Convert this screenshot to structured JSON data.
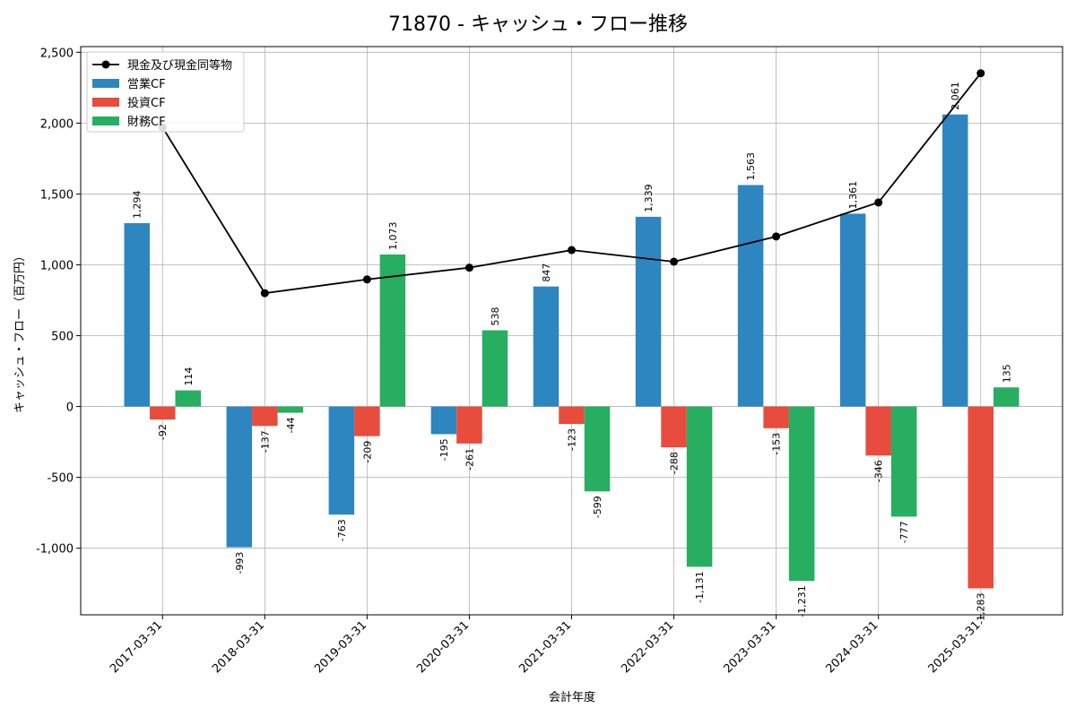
{
  "chart_data": {
    "type": "bar",
    "title": "71870 - キャッシュ・フロー推移",
    "xlabel": "会計年度",
    "ylabel": "キャッシュ・フロー（百万円）",
    "ylim": [
      -1470,
      2540
    ],
    "yticks": [
      -1000,
      -500,
      0,
      500,
      1000,
      1500,
      2000,
      2500
    ],
    "ytick_labels": [
      "-1,000",
      "-500",
      "0",
      "500",
      "1,000",
      "1,500",
      "2,000",
      "2,500"
    ],
    "grid": true,
    "legend_position": "top-left",
    "categories": [
      "2017-03-31",
      "2018-03-31",
      "2019-03-31",
      "2020-03-31",
      "2021-03-31",
      "2022-03-31",
      "2023-03-31",
      "2024-03-31",
      "2025-03-31"
    ],
    "series": [
      {
        "name": "営業CF",
        "kind": "bar",
        "color": "#2e86c1",
        "values": [
          1294,
          -993,
          -763,
          -195,
          847,
          1339,
          1563,
          1361,
          2061
        ],
        "labels": [
          "1,294",
          "-993",
          "-763",
          "-195",
          "847",
          "1,339",
          "1,563",
          "1,361",
          "2,061"
        ]
      },
      {
        "name": "投資CF",
        "kind": "bar",
        "color": "#e74c3c",
        "values": [
          -92,
          -137,
          -209,
          -261,
          -123,
          -288,
          -153,
          -346,
          -1283
        ],
        "labels": [
          "-92",
          "-137",
          "-209",
          "-261",
          "-123",
          "-288",
          "-153",
          "-346",
          "-1,283"
        ]
      },
      {
        "name": "財務CF",
        "kind": "bar",
        "color": "#27ae60",
        "values": [
          114,
          -44,
          1073,
          538,
          -599,
          -1131,
          -1231,
          -777,
          135
        ],
        "labels": [
          "114",
          "-44",
          "1,073",
          "538",
          "-599",
          "-1,131",
          "-1,231",
          "-777",
          "135"
        ]
      },
      {
        "name": "現金及び現金同等物",
        "kind": "line",
        "color": "#000000",
        "values": [
          1970,
          800,
          897,
          980,
          1104,
          1022,
          1200,
          1440,
          2352
        ]
      }
    ]
  }
}
